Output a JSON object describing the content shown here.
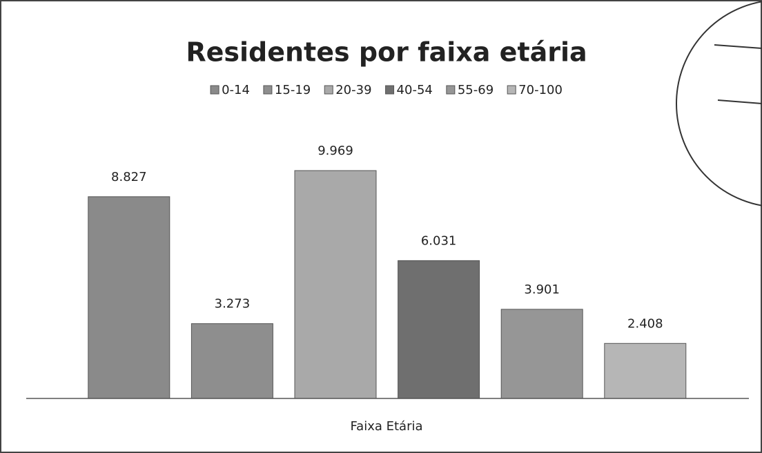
{
  "chart_data": {
    "type": "bar",
    "title": "Residentes por faixa etária",
    "x_label": "Faixa Etária",
    "categories": [
      null
    ],
    "ylim": [
      0,
      10000
    ],
    "legend": "top",
    "series": [
      {
        "name": "0-14",
        "color": "#8a8a8a",
        "values": [
          8827
        ],
        "value_labels": [
          "8.827"
        ]
      },
      {
        "name": "15-19",
        "color": "#8e8e8e",
        "values": [
          3273
        ],
        "value_labels": [
          "3.273"
        ]
      },
      {
        "name": "20-39",
        "color": "#a9a9a9",
        "values": [
          9969
        ],
        "value_labels": [
          "9.969"
        ]
      },
      {
        "name": "40-54",
        "color": "#6f6f6f",
        "values": [
          6031
        ],
        "value_labels": [
          "6.031"
        ]
      },
      {
        "name": "55-69",
        "color": "#969696",
        "values": [
          3901
        ],
        "value_labels": [
          "3.901"
        ]
      },
      {
        "name": "70-100",
        "color": "#b6b6b6",
        "values": [
          2408
        ],
        "value_labels": [
          "2.408"
        ]
      }
    ]
  }
}
